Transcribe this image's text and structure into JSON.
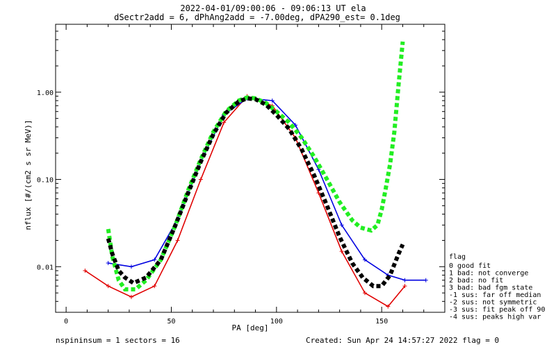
{
  "title_line1": "2022-04-01/09:00:06 - 09:06:13 UT ela",
  "title_line2": "dSectr2add = 6, dPhAng2add = -7.00deg, dPA290_est=   0.1deg",
  "footer_left": "nspininsum =  1  sectors = 16",
  "footer_right": "Created: Sun Apr 24 14:57:27 2022   flag = 0",
  "legend": {
    "heading": "flag",
    "items": [
      " 0 good fit",
      " 1 bad: not converge",
      " 2 bad: no fit",
      " 3 bad: bad fgm state",
      "-1 sus: far off median",
      "-2 sus: not symmetric",
      "-3 sus: fit peak off 90",
      "-4 sus: peaks high var"
    ]
  },
  "colors": {
    "red": "#e00000",
    "blue": "#0000e0",
    "green": "#22ee22",
    "black": "#000000"
  },
  "chart_data": {
    "type": "line",
    "xlabel": "PA [deg]",
    "ylabel": "nflux [#/(cm2 s sr MeV)]",
    "xlim": [
      -5,
      180
    ],
    "ylim": [
      0.003,
      6
    ],
    "yscale": "log",
    "x_ticks": [
      0,
      50,
      100,
      150
    ],
    "x_tick_labels": [
      "0",
      "50",
      "100",
      "150"
    ],
    "y_ticks": [
      0.01,
      0.1,
      1.0
    ],
    "y_tick_labels": [
      "0.01",
      "0.10",
      "1.00"
    ],
    "grid": false,
    "series": [
      {
        "color": "red",
        "x": [
          9,
          20,
          31,
          42,
          53,
          64,
          75,
          86,
          98,
          109,
          120,
          131,
          142,
          153,
          161
        ],
        "y": [
          0.009,
          0.006,
          0.0045,
          0.006,
          0.02,
          0.1,
          0.45,
          0.9,
          0.7,
          0.3,
          0.07,
          0.015,
          0.005,
          0.0035,
          0.006
        ]
      },
      {
        "color": "blue",
        "x": [
          20,
          31,
          42,
          53,
          64,
          75,
          86,
          98,
          109,
          120,
          131,
          142,
          153,
          161,
          171
        ],
        "y": [
          0.011,
          0.01,
          0.012,
          0.035,
          0.16,
          0.55,
          0.85,
          0.8,
          0.42,
          0.13,
          0.03,
          0.012,
          0.008,
          0.007,
          0.007
        ]
      },
      {
        "color": "green",
        "style": "dashed",
        "x": [
          20,
          22,
          25,
          28,
          33,
          38,
          45,
          52,
          58,
          64,
          70,
          76,
          82,
          86,
          90,
          95,
          100,
          106,
          112,
          118,
          124,
          130,
          136,
          140,
          145,
          148,
          150,
          152,
          154,
          156,
          158,
          160
        ],
        "y": [
          0.027,
          0.013,
          0.007,
          0.0055,
          0.0055,
          0.007,
          0.012,
          0.03,
          0.075,
          0.17,
          0.35,
          0.6,
          0.8,
          0.87,
          0.85,
          0.75,
          0.6,
          0.45,
          0.3,
          0.18,
          0.1,
          0.055,
          0.034,
          0.028,
          0.026,
          0.03,
          0.045,
          0.08,
          0.15,
          0.35,
          1.2,
          3.8
        ]
      },
      {
        "color": "black",
        "style": "dashed",
        "x": [
          20,
          22,
          25,
          28,
          32,
          38,
          45,
          52,
          58,
          64,
          70,
          76,
          82,
          86,
          90,
          95,
          100,
          106,
          112,
          118,
          124,
          130,
          136,
          141,
          146,
          150,
          154,
          158,
          160
        ],
        "y": [
          0.021,
          0.014,
          0.009,
          0.0075,
          0.0065,
          0.0075,
          0.012,
          0.03,
          0.07,
          0.16,
          0.33,
          0.58,
          0.78,
          0.85,
          0.83,
          0.72,
          0.55,
          0.38,
          0.22,
          0.11,
          0.05,
          0.022,
          0.011,
          0.0075,
          0.006,
          0.006,
          0.008,
          0.014,
          0.018
        ]
      }
    ]
  }
}
